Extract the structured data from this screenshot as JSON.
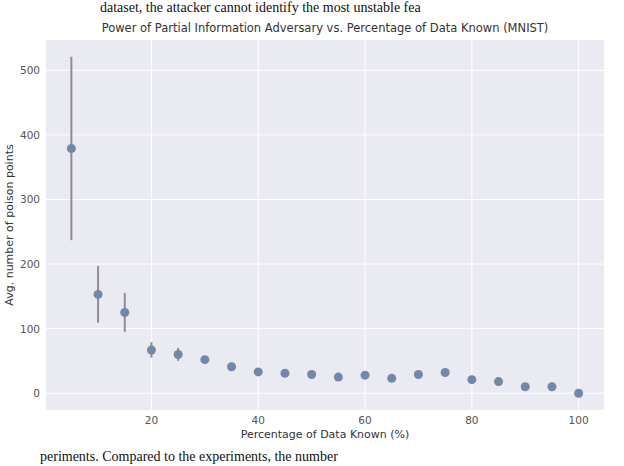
{
  "chart_data": {
    "type": "scatter",
    "title": "Power of Partial Information Adversary vs. Percentage of Data Known (MNIST)",
    "x_label": "Percentage of Data Known (%)",
    "y_label": "Avg. number of poison points",
    "annotations": [
      "dataset, the attacker cannot identify the most unstable fea",
      "periments. Compared to the experiments, the number"
    ],
    "x": [
      5,
      10,
      15,
      20,
      25,
      30,
      35,
      40,
      45,
      50,
      55,
      60,
      65,
      70,
      75,
      80,
      85,
      90,
      95,
      100
    ],
    "values": [
      379,
      153,
      125,
      67,
      60,
      52,
      41,
      33,
      31,
      29,
      25,
      28,
      23,
      29,
      32,
      21,
      18,
      10,
      10,
      0
    ],
    "errors": [
      142,
      44,
      30,
      12,
      10,
      5,
      4,
      3,
      3,
      3,
      3,
      3,
      3,
      3,
      5,
      3,
      4,
      2,
      2,
      0
    ],
    "color": "#7586a6",
    "marker": "circle",
    "xlim": [
      0.25,
      104.75
    ],
    "xticks": [
      20,
      40,
      60,
      80,
      100
    ],
    "ylim": [
      -26,
      547
    ],
    "yticks": [
      0,
      100,
      200,
      300,
      400,
      500
    ],
    "grid": true
  }
}
